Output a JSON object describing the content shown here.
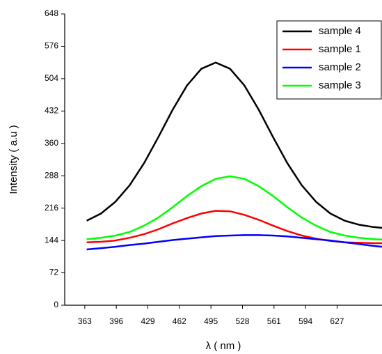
{
  "chart_data": {
    "type": "line",
    "xlabel": "λ ( nm )",
    "ylabel": "Intensity ( a.u )",
    "x": [
      365,
      380,
      395,
      410,
      425,
      440,
      455,
      470,
      485,
      500,
      515,
      530,
      545,
      560,
      575,
      590,
      605,
      620,
      635,
      650,
      665,
      674
    ],
    "series": [
      {
        "name": "sample 4",
        "color": "#000000",
        "values": [
          188,
          204,
          230,
          267,
          316,
          374,
          435,
          489,
          526,
          540,
          526,
          489,
          435,
          374,
          316,
          267,
          230,
          204,
          188,
          179,
          174,
          172
        ]
      },
      {
        "name": "sample 1",
        "color": "#ff0000",
        "values": [
          140,
          141,
          144,
          150,
          158,
          169,
          182,
          194,
          204,
          210,
          209,
          201,
          190,
          177,
          165,
          155,
          148,
          143,
          140,
          139,
          138,
          138
        ]
      },
      {
        "name": "sample 2",
        "color": "#0000ff",
        "values": [
          124,
          127,
          130,
          134,
          137,
          141,
          145,
          148,
          151,
          154,
          155,
          156,
          156,
          155,
          153,
          150,
          147,
          144,
          140,
          136,
          132,
          130
        ]
      },
      {
        "name": "sample 3",
        "color": "#00ff00",
        "values": [
          147,
          150,
          155,
          163,
          177,
          195,
          218,
          243,
          265,
          281,
          287,
          281,
          265,
          243,
          218,
          195,
          177,
          163,
          155,
          150,
          147,
          146
        ]
      }
    ],
    "xlim": [
      342,
      674
    ],
    "xticks": [
      363,
      396,
      429,
      462,
      495,
      528,
      561,
      594,
      627
    ],
    "ylim": [
      0,
      648
    ],
    "yticks": [
      0,
      72,
      144,
      216,
      288,
      360,
      432,
      504,
      576,
      648
    ],
    "legend": "upper right"
  }
}
